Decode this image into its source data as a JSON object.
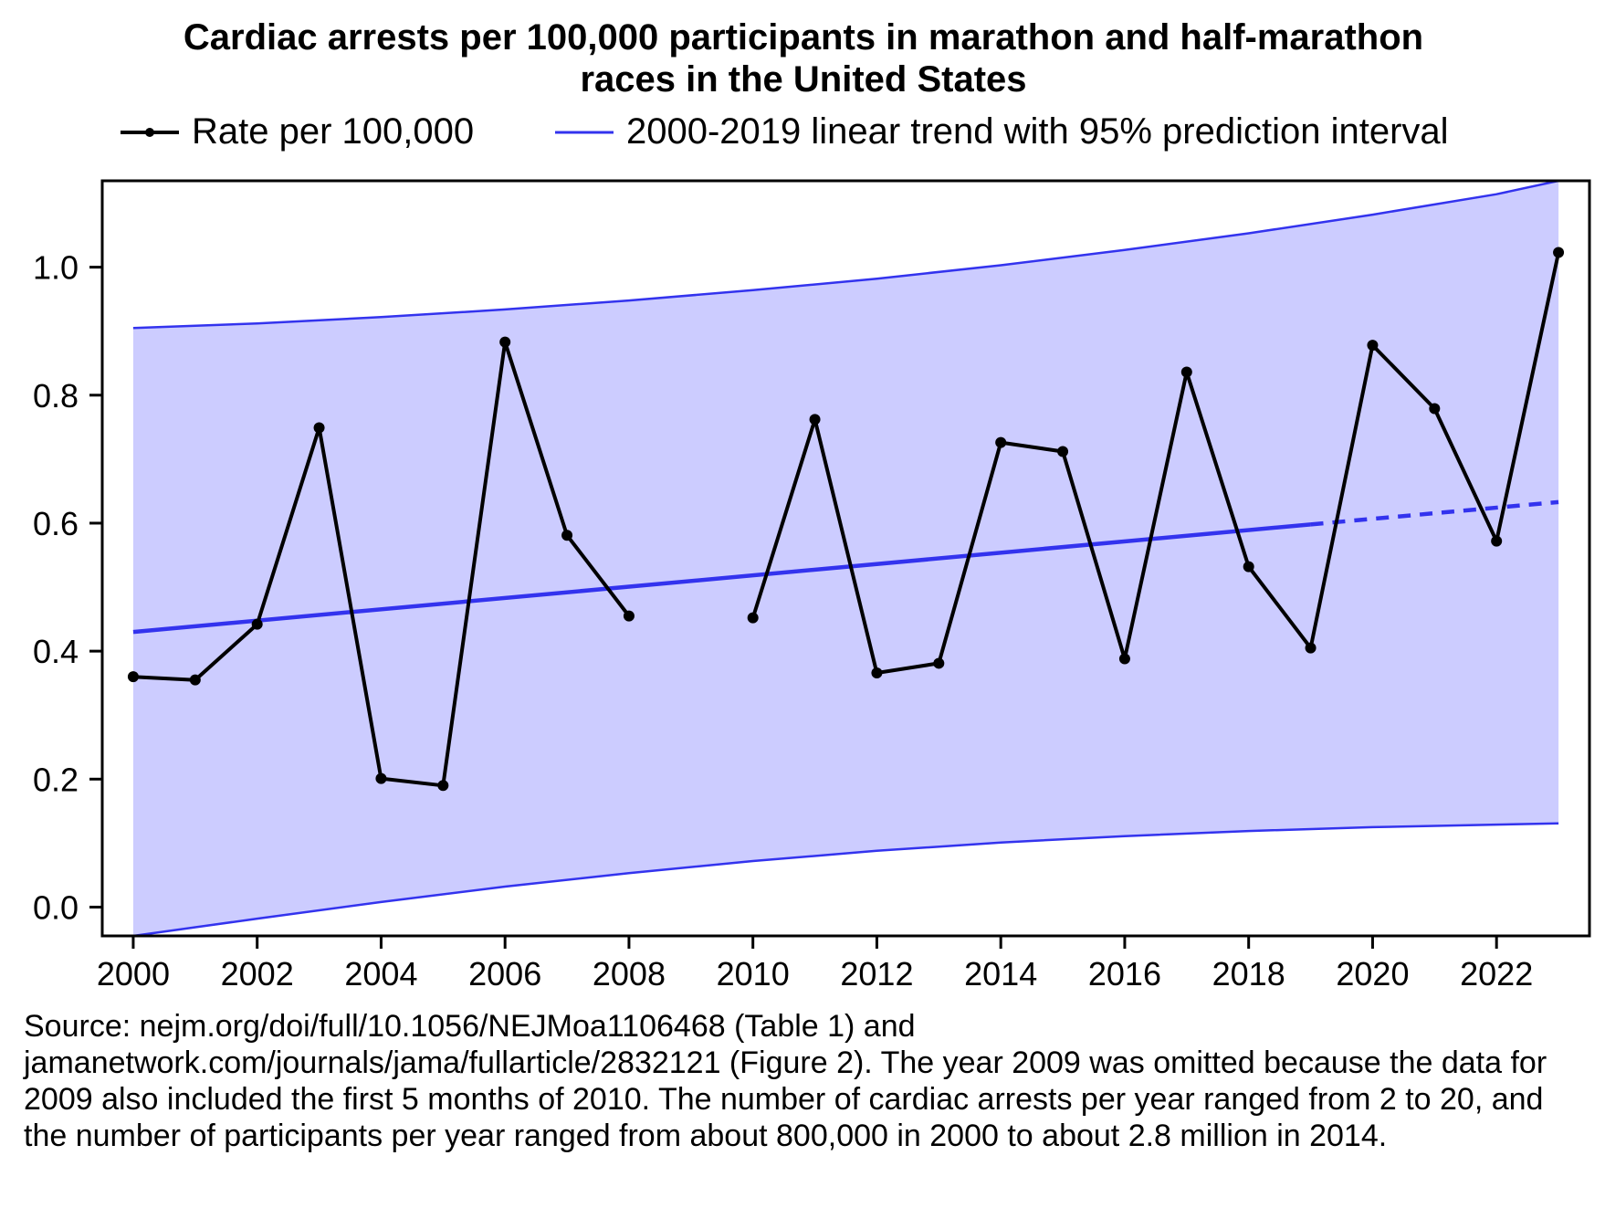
{
  "chart_data": {
    "type": "line",
    "title_lines": [
      "Cardiac arrests per 100,000 participants in marathon and half-marathon",
      "races in the United States"
    ],
    "xlabel": "",
    "ylabel": "",
    "xlim": [
      1999.5,
      2023.5
    ],
    "ylim": [
      -0.045,
      1.135
    ],
    "x_ticks": [
      2000,
      2002,
      2004,
      2006,
      2008,
      2010,
      2012,
      2014,
      2016,
      2018,
      2020,
      2022
    ],
    "y_ticks": [
      0.0,
      0.2,
      0.4,
      0.6,
      0.8,
      1.0
    ],
    "y_tick_labels": [
      "0.0",
      "0.2",
      "0.4",
      "0.6",
      "0.8",
      "1.0"
    ],
    "legend": {
      "placement": "top",
      "rate_label": "Rate per 100,000",
      "trend_label": "2000-2019 linear trend with 95% prediction interval"
    },
    "series": [
      {
        "name": "Rate per 100,000",
        "color": "#000000",
        "points": [
          {
            "x": 2000,
            "y": 0.36
          },
          {
            "x": 2001,
            "y": 0.355
          },
          {
            "x": 2002,
            "y": 0.442
          },
          {
            "x": 2003,
            "y": 0.749
          },
          {
            "x": 2004,
            "y": 0.201
          },
          {
            "x": 2005,
            "y": 0.19
          },
          {
            "x": 2006,
            "y": 0.883
          },
          {
            "x": 2007,
            "y": 0.581
          },
          {
            "x": 2008,
            "y": 0.455
          },
          {
            "x": 2009,
            "y": null
          },
          {
            "x": 2010,
            "y": 0.452
          },
          {
            "x": 2011,
            "y": 0.762
          },
          {
            "x": 2012,
            "y": 0.366
          },
          {
            "x": 2013,
            "y": 0.381
          },
          {
            "x": 2014,
            "y": 0.726
          },
          {
            "x": 2015,
            "y": 0.712
          },
          {
            "x": 2016,
            "y": 0.388
          },
          {
            "x": 2017,
            "y": 0.836
          },
          {
            "x": 2018,
            "y": 0.532
          },
          {
            "x": 2019,
            "y": 0.405
          },
          {
            "x": 2020,
            "y": 0.878
          },
          {
            "x": 2021,
            "y": 0.779
          },
          {
            "x": 2022,
            "y": 0.572
          },
          {
            "x": 2023,
            "y": 1.023
          }
        ]
      },
      {
        "name": "2000-2019 linear trend with 95% prediction interval",
        "color": "#3333ee",
        "band_color": "#ccccff",
        "fit_range": [
          2000,
          2019
        ],
        "extrapolated_range": [
          2019,
          2023
        ],
        "trend": [
          {
            "x": 2000,
            "y": 0.43
          },
          {
            "x": 2019,
            "y": 0.598
          },
          {
            "x": 2023,
            "y": 0.633
          }
        ],
        "upper": [
          {
            "x": 2000,
            "y": 0.905
          },
          {
            "x": 2002,
            "y": 0.912
          },
          {
            "x": 2004,
            "y": 0.922
          },
          {
            "x": 2006,
            "y": 0.934
          },
          {
            "x": 2008,
            "y": 0.948
          },
          {
            "x": 2010,
            "y": 0.964
          },
          {
            "x": 2012,
            "y": 0.982
          },
          {
            "x": 2014,
            "y": 1.003
          },
          {
            "x": 2016,
            "y": 1.027
          },
          {
            "x": 2018,
            "y": 1.053
          },
          {
            "x": 2020,
            "y": 1.082
          },
          {
            "x": 2022,
            "y": 1.114
          },
          {
            "x": 2023,
            "y": 1.135
          }
        ],
        "lower": [
          {
            "x": 2000,
            "y": -0.045
          },
          {
            "x": 2002,
            "y": -0.018
          },
          {
            "x": 2004,
            "y": 0.008
          },
          {
            "x": 2006,
            "y": 0.032
          },
          {
            "x": 2008,
            "y": 0.053
          },
          {
            "x": 2010,
            "y": 0.072
          },
          {
            "x": 2012,
            "y": 0.088
          },
          {
            "x": 2014,
            "y": 0.101
          },
          {
            "x": 2016,
            "y": 0.111
          },
          {
            "x": 2018,
            "y": 0.119
          },
          {
            "x": 2020,
            "y": 0.125
          },
          {
            "x": 2022,
            "y": 0.129
          },
          {
            "x": 2023,
            "y": 0.131
          }
        ]
      }
    ],
    "grid": false
  },
  "source_note": "Source: nejm.org/doi/full/10.1056/NEJMoa1106468 (Table 1) and jamanetwork.com/journals/jama/fullarticle/2832121 (Figure 2). The year 2009 was omitted because the data for 2009 also included the first 5 months of 2010. The number of cardiac arrests per year ranged from 2 to 20, and the number of participants per year ranged from about 800,000 in 2000 to about 2.8 million in 2014."
}
